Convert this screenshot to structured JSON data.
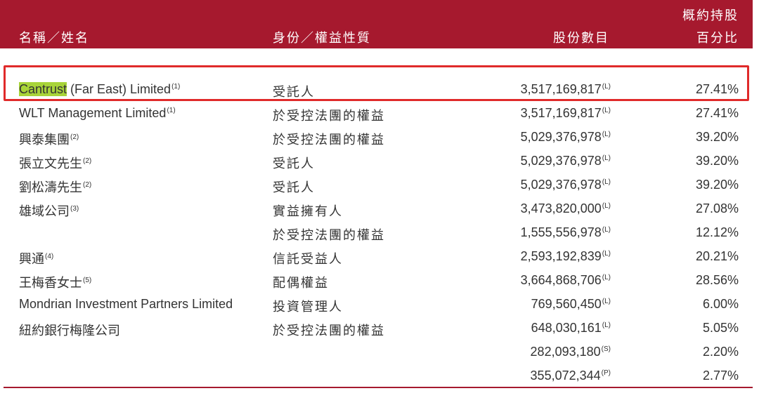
{
  "header": {
    "name": "名稱／姓名",
    "role": "身份／權益性質",
    "shares": "股份數目",
    "pct_line1": "概約持股",
    "pct_line2": "百分比"
  },
  "rows": [
    {
      "name": "Cantrust",
      "name_rest": " (Far East) Limited",
      "name_note": "(1)",
      "role": "受託人",
      "shares": "3,517,169,817",
      "shares_note": "(L)",
      "pct": "27.41%"
    },
    {
      "name": "WLT Management Limited",
      "name_note": "(1)",
      "role": "於受控法團的權益",
      "shares": "3,517,169,817",
      "shares_note": "(L)",
      "pct": "27.41%"
    },
    {
      "name": "興泰集團",
      "name_note": "(2)",
      "role": "於受控法團的權益",
      "shares": "5,029,376,978",
      "shares_note": "(L)",
      "pct": "39.20%"
    },
    {
      "name": "張立文先生",
      "name_note": "(2)",
      "role": "受託人",
      "shares": "5,029,376,978",
      "shares_note": "(L)",
      "pct": "39.20%"
    },
    {
      "name": "劉松濤先生",
      "name_note": "(2)",
      "role": "受託人",
      "shares": "5,029,376,978",
      "shares_note": "(L)",
      "pct": "39.20%"
    },
    {
      "name": "雄域公司",
      "name_note": "(3)",
      "role": "實益擁有人",
      "shares": "3,473,820,000",
      "shares_note": "(L)",
      "pct": "27.08%"
    },
    {
      "name": "",
      "name_note": "",
      "role": "於受控法團的權益",
      "shares": "1,555,556,978",
      "shares_note": "(L)",
      "pct": "12.12%"
    },
    {
      "name": "興通",
      "name_note": "(4)",
      "role": "信託受益人",
      "shares": "2,593,192,839",
      "shares_note": "(L)",
      "pct": "20.21%"
    },
    {
      "name": "王梅香女士",
      "name_note": "(5)",
      "role": "配偶權益",
      "shares": "3,664,868,706",
      "shares_note": "(L)",
      "pct": "28.56%"
    },
    {
      "name": "Mondrian Investment Partners Limited",
      "name_note": "",
      "role": "投資管理人",
      "shares": "769,560,450",
      "shares_note": "(L)",
      "pct": "6.00%"
    },
    {
      "name": "紐約銀行梅隆公司",
      "name_note": "",
      "role": "於受控法團的權益",
      "shares": "648,030,161",
      "shares_note": "(L)",
      "pct": "5.05%"
    },
    {
      "name": "",
      "name_note": "",
      "role": "",
      "shares": "282,093,180",
      "shares_note": "(S)",
      "pct": "2.20%"
    },
    {
      "name": "",
      "name_note": "",
      "role": "",
      "shares": "355,072,344",
      "shares_note": "(P)",
      "pct": "2.77%"
    }
  ],
  "colors": {
    "header_bg": "#a6192e",
    "highlight_marker": "#a8d43a",
    "highlight_box": "#e02a2a"
  }
}
